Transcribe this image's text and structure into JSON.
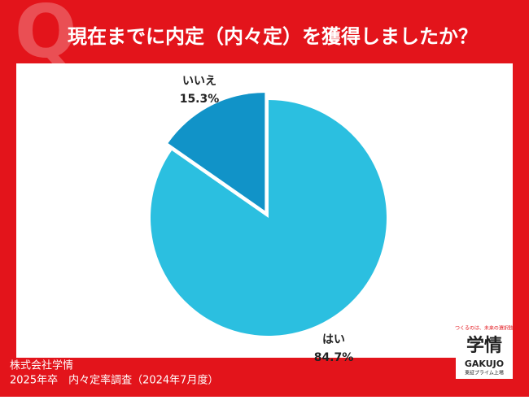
{
  "chart_data": {
    "type": "pie",
    "title": "現在までに内定（内々定）を獲得しましたか？",
    "categories": [
      "はい",
      "いいえ"
    ],
    "values": [
      84.7,
      15.3
    ],
    "value_labels": [
      "84.7%",
      "15.3%"
    ],
    "colors": [
      "#2bbfe0",
      "#1193c8"
    ]
  },
  "footer": {
    "company": "株式会社学情",
    "survey": "2025年卒　内々定率調査（2024年7月度）"
  },
  "logo": {
    "tagline": "つくるのは、未来の選択肢",
    "name": "学情",
    "roman": "GAKUJO",
    "listing": "東証プライム上場"
  }
}
